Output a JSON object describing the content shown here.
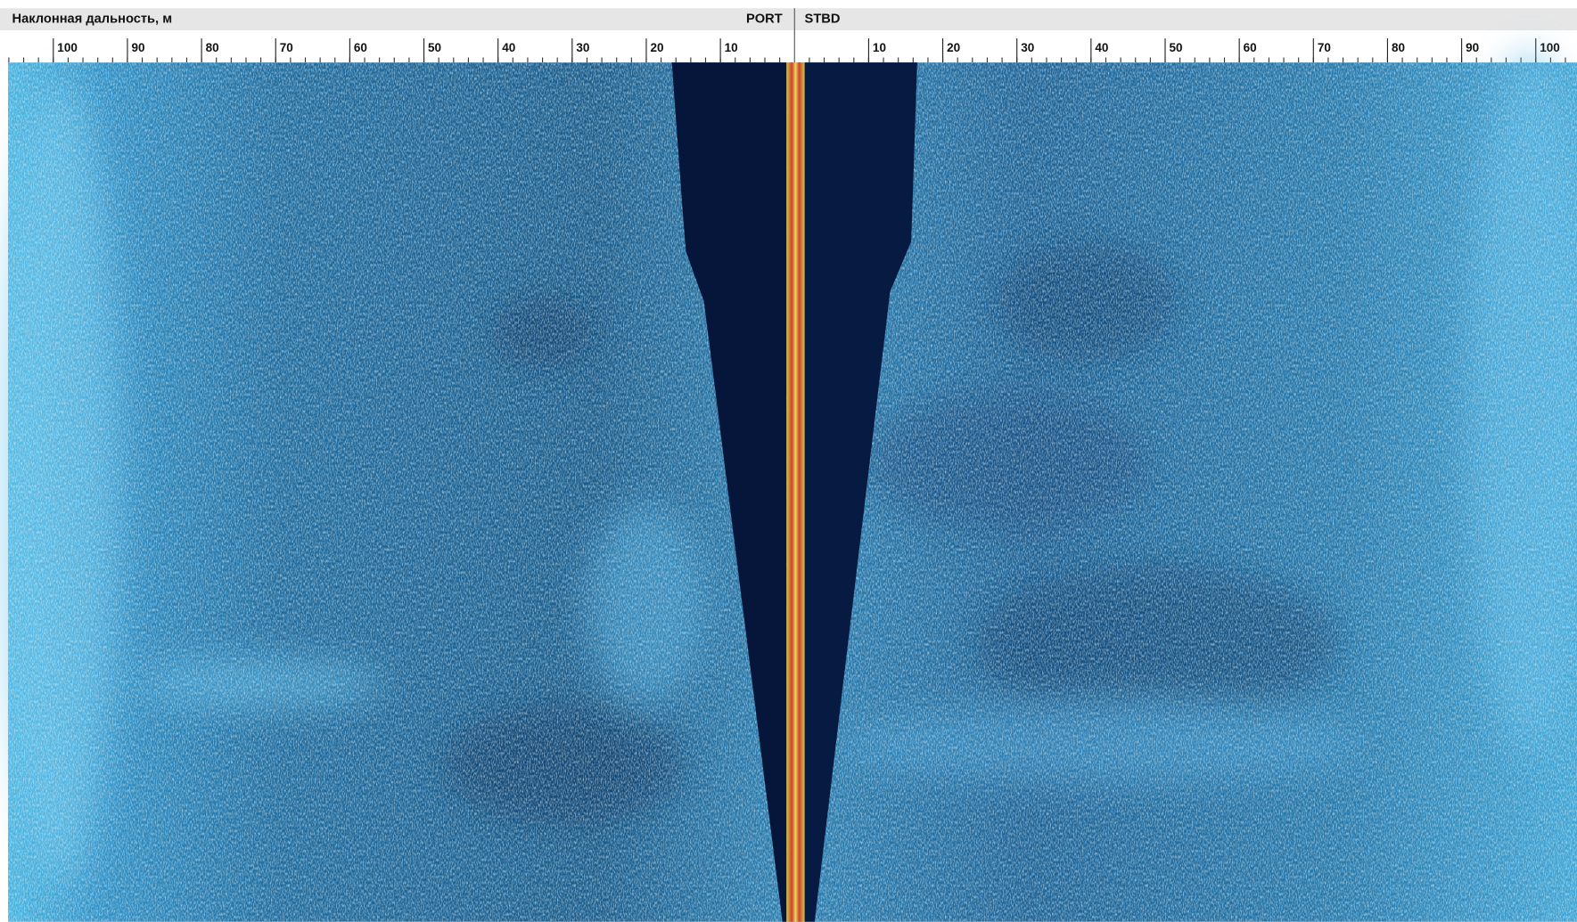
{
  "header": {
    "title": "Наклонная дальность, м",
    "port": "PORT",
    "stbd": "STBD"
  },
  "ruler": {
    "port": [
      100,
      90,
      80,
      70,
      60,
      50,
      40,
      30,
      20,
      10
    ],
    "stbd": [
      10,
      20,
      30,
      40,
      50,
      60,
      70,
      80,
      90,
      100
    ]
  }
}
